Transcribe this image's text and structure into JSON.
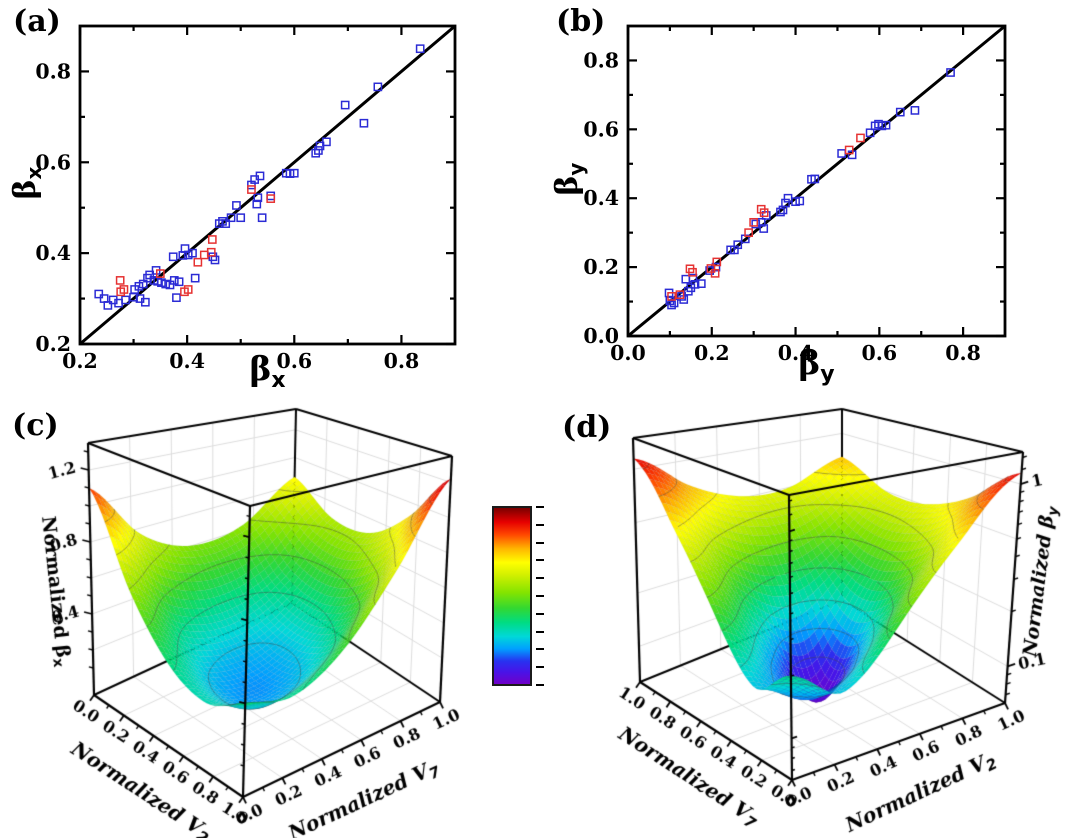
{
  "panel_labels": {
    "a": "(a)",
    "b": "(b)",
    "c": "(c)",
    "d": "(d)"
  },
  "colormap": {
    "stops": [
      [
        0.0,
        "#7000c8"
      ],
      [
        0.07,
        "#4814e8"
      ],
      [
        0.13,
        "#2832f0"
      ],
      [
        0.2,
        "#00a0ff"
      ],
      [
        0.27,
        "#00d8d8"
      ],
      [
        0.35,
        "#00dc82"
      ],
      [
        0.43,
        "#32d832"
      ],
      [
        0.52,
        "#84e400"
      ],
      [
        0.62,
        "#d2f000"
      ],
      [
        0.69,
        "#ffff00"
      ],
      [
        0.77,
        "#ffb400"
      ],
      [
        0.85,
        "#ff4600"
      ],
      [
        0.92,
        "#e60000"
      ],
      [
        1.0,
        "#7a0000"
      ]
    ]
  },
  "chart_data": [
    {
      "id": "a",
      "type": "scatter",
      "xlabel": {
        "base": "β",
        "sub": "x"
      },
      "ylabel": {
        "base": "β",
        "sub": "x"
      },
      "xlim": [
        0.2,
        0.9
      ],
      "ylim": [
        0.2,
        0.9
      ],
      "xticks": [
        "0.2",
        "0.4",
        "0.6",
        "0.8"
      ],
      "yticks": [
        "0.2",
        "0.4",
        "0.6",
        "0.8"
      ],
      "reference_line": {
        "from": [
          0.2,
          0.2
        ],
        "to": [
          0.9,
          0.9
        ],
        "color": "#000000"
      },
      "series": [
        {
          "name": "series-blue",
          "marker": "open-square",
          "color": "#2b2bd5",
          "points": [
            [
              0.235,
              0.31
            ],
            [
              0.245,
              0.3
            ],
            [
              0.252,
              0.285
            ],
            [
              0.262,
              0.297
            ],
            [
              0.272,
              0.29
            ],
            [
              0.285,
              0.297
            ],
            [
              0.3,
              0.303
            ],
            [
              0.302,
              0.32
            ],
            [
              0.31,
              0.327
            ],
            [
              0.312,
              0.3
            ],
            [
              0.318,
              0.332
            ],
            [
              0.322,
              0.292
            ],
            [
              0.326,
              0.345
            ],
            [
              0.33,
              0.352
            ],
            [
              0.338,
              0.34
            ],
            [
              0.342,
              0.362
            ],
            [
              0.345,
              0.338
            ],
            [
              0.352,
              0.335
            ],
            [
              0.36,
              0.332
            ],
            [
              0.368,
              0.33
            ],
            [
              0.374,
              0.392
            ],
            [
              0.376,
              0.34
            ],
            [
              0.38,
              0.302
            ],
            [
              0.385,
              0.337
            ],
            [
              0.392,
              0.395
            ],
            [
              0.396,
              0.41
            ],
            [
              0.402,
              0.396
            ],
            [
              0.41,
              0.4
            ],
            [
              0.415,
              0.345
            ],
            [
              0.448,
              0.392
            ],
            [
              0.452,
              0.385
            ],
            [
              0.46,
              0.465
            ],
            [
              0.466,
              0.47
            ],
            [
              0.472,
              0.465
            ],
            [
              0.482,
              0.478
            ],
            [
              0.492,
              0.505
            ],
            [
              0.5,
              0.478
            ],
            [
              0.52,
              0.55
            ],
            [
              0.526,
              0.562
            ],
            [
              0.53,
              0.508
            ],
            [
              0.532,
              0.522
            ],
            [
              0.536,
              0.57
            ],
            [
              0.54,
              0.478
            ],
            [
              0.556,
              0.526
            ],
            [
              0.585,
              0.576
            ],
            [
              0.592,
              0.575
            ],
            [
              0.6,
              0.576
            ],
            [
              0.64,
              0.62
            ],
            [
              0.645,
              0.626
            ],
            [
              0.648,
              0.636
            ],
            [
              0.66,
              0.645
            ],
            [
              0.695,
              0.726
            ],
            [
              0.73,
              0.686
            ],
            [
              0.756,
              0.766
            ],
            [
              0.835,
              0.85
            ]
          ]
        },
        {
          "name": "series-red",
          "marker": "open-square",
          "color": "#e63232",
          "points": [
            [
              0.275,
              0.34
            ],
            [
              0.276,
              0.315
            ],
            [
              0.282,
              0.32
            ],
            [
              0.35,
              0.355
            ],
            [
              0.395,
              0.315
            ],
            [
              0.402,
              0.32
            ],
            [
              0.42,
              0.38
            ],
            [
              0.432,
              0.396
            ],
            [
              0.445,
              0.402
            ],
            [
              0.447,
              0.43
            ],
            [
              0.52,
              0.54
            ],
            [
              0.556,
              0.52
            ]
          ]
        }
      ]
    },
    {
      "id": "b",
      "type": "scatter",
      "xlabel": {
        "base": "β",
        "sub": "y"
      },
      "ylabel": {
        "base": "β",
        "sub": "y"
      },
      "xlim": [
        0.0,
        0.9
      ],
      "ylim": [
        0.0,
        0.9
      ],
      "xticks": [
        "0.0",
        "0.2",
        "0.4",
        "0.6",
        "0.8"
      ],
      "yticks": [
        "0.0",
        "0.2",
        "0.4",
        "0.6",
        "0.8"
      ],
      "reference_line": {
        "from": [
          0.0,
          0.0
        ],
        "to": [
          0.9,
          0.9
        ],
        "color": "#000000"
      },
      "series": [
        {
          "name": "series-blue",
          "marker": "open-square",
          "color": "#2b2bd5",
          "points": [
            [
              0.098,
              0.125
            ],
            [
              0.1,
              0.102
            ],
            [
              0.104,
              0.09
            ],
            [
              0.11,
              0.096
            ],
            [
              0.128,
              0.115
            ],
            [
              0.133,
              0.106
            ],
            [
              0.138,
              0.165
            ],
            [
              0.144,
              0.13
            ],
            [
              0.15,
              0.14
            ],
            [
              0.155,
              0.168
            ],
            [
              0.16,
              0.15
            ],
            [
              0.175,
              0.152
            ],
            [
              0.195,
              0.19
            ],
            [
              0.21,
              0.2
            ],
            [
              0.245,
              0.25
            ],
            [
              0.254,
              0.25
            ],
            [
              0.262,
              0.265
            ],
            [
              0.28,
              0.282
            ],
            [
              0.305,
              0.325
            ],
            [
              0.318,
              0.33
            ],
            [
              0.324,
              0.312
            ],
            [
              0.33,
              0.35
            ],
            [
              0.364,
              0.36
            ],
            [
              0.37,
              0.366
            ],
            [
              0.376,
              0.386
            ],
            [
              0.382,
              0.4
            ],
            [
              0.4,
              0.39
            ],
            [
              0.41,
              0.392
            ],
            [
              0.438,
              0.455
            ],
            [
              0.446,
              0.456
            ],
            [
              0.51,
              0.53
            ],
            [
              0.535,
              0.526
            ],
            [
              0.578,
              0.59
            ],
            [
              0.59,
              0.61
            ],
            [
              0.598,
              0.615
            ],
            [
              0.606,
              0.61
            ],
            [
              0.616,
              0.612
            ],
            [
              0.65,
              0.65
            ],
            [
              0.685,
              0.655
            ],
            [
              0.77,
              0.765
            ]
          ]
        },
        {
          "name": "series-red",
          "marker": "open-square",
          "color": "#e63232",
          "points": [
            [
              0.104,
              0.115
            ],
            [
              0.124,
              0.12
            ],
            [
              0.148,
              0.195
            ],
            [
              0.154,
              0.185
            ],
            [
              0.198,
              0.196
            ],
            [
              0.208,
              0.182
            ],
            [
              0.212,
              0.215
            ],
            [
              0.288,
              0.3
            ],
            [
              0.3,
              0.33
            ],
            [
              0.318,
              0.368
            ],
            [
              0.325,
              0.358
            ],
            [
              0.528,
              0.54
            ],
            [
              0.555,
              0.575
            ]
          ]
        }
      ]
    },
    {
      "id": "c",
      "type": "surface",
      "zlabel": {
        "base": "Normalized β",
        "sub": "x"
      },
      "left_axis": {
        "label": {
          "base": "Normalized V",
          "sub": "2"
        },
        "ticks": [
          "0.0",
          "0.2",
          "0.4",
          "0.6",
          "0.8",
          "1.0"
        ]
      },
      "right_axis": {
        "label": {
          "base": "Normalized V",
          "sub": "7"
        },
        "ticks": [
          "0.0",
          "0.2",
          "0.4",
          "0.6",
          "0.8",
          "1.0"
        ]
      },
      "zscale": "linear",
      "zticks": [
        "0.4",
        "0.8",
        "1.2"
      ],
      "ztick_values": [
        0.4,
        0.8,
        1.2
      ],
      "zlim": [
        -0.05,
        1.35
      ],
      "clim": [
        -0.15,
        1.3
      ],
      "colorbar": true,
      "mapping": {
        "i": "V7",
        "j": "V2",
        "j_front_value": 1
      },
      "grid_axes": {
        "rows": "V2",
        "cols": "V7",
        "values": [
          0,
          0.25,
          0.5,
          0.75,
          1
        ]
      },
      "z_grid": [
        [
          1.1,
          0.76,
          0.6,
          0.63,
          0.86
        ],
        [
          0.64,
          0.37,
          0.29,
          0.39,
          0.69
        ],
        [
          0.37,
          0.17,
          0.16,
          0.34,
          0.71
        ],
        [
          0.29,
          0.16,
          0.22,
          0.48,
          0.92
        ],
        [
          0.39,
          0.34,
          0.48,
          0.8,
          1.22
        ]
      ],
      "contour_levels": [
        0.2,
        0.35,
        0.5,
        0.65,
        0.8,
        0.95,
        1.1
      ]
    },
    {
      "id": "d",
      "type": "surface",
      "zlabel": {
        "base": "Normalized β",
        "sub": "y"
      },
      "left_axis": {
        "label": {
          "base": "Normalized V",
          "sub": "7"
        },
        "ticks": [
          "1.0",
          "0.8",
          "0.6",
          "0.4",
          "0.2",
          "0.0"
        ]
      },
      "right_axis": {
        "label": {
          "base": "Normalized V",
          "sub": "2"
        },
        "ticks": [
          "0.0",
          "0.2",
          "0.4",
          "0.6",
          "0.8",
          "1.0"
        ]
      },
      "zscale": "log",
      "zticks": [
        "1",
        "0.1"
      ],
      "ztick_values": [
        1,
        0.1
      ],
      "zlim": [
        0.063,
        1.5
      ],
      "clim": [
        0.063,
        1.5
      ],
      "colorbar": false,
      "mapping": {
        "i": "V2",
        "j": "V7",
        "j_front_value": 0
      },
      "grid_axes": {
        "rows": "V2",
        "cols": "V7",
        "values": [
          0,
          0.25,
          0.5,
          0.75,
          1
        ]
      },
      "z_grid": [
        [
          0.2,
          0.14,
          0.26,
          0.58,
          1.15
        ],
        [
          0.14,
          0.1,
          0.13,
          0.32,
          0.72
        ],
        [
          0.26,
          0.13,
          0.07,
          0.22,
          0.52
        ],
        [
          0.58,
          0.32,
          0.22,
          0.28,
          0.5
        ],
        [
          1.15,
          0.72,
          0.52,
          0.5,
          0.68
        ]
      ],
      "contour_levels": [
        0.09,
        0.12,
        0.16,
        0.22,
        0.3,
        0.42,
        0.58,
        0.8,
        1.05
      ]
    }
  ]
}
